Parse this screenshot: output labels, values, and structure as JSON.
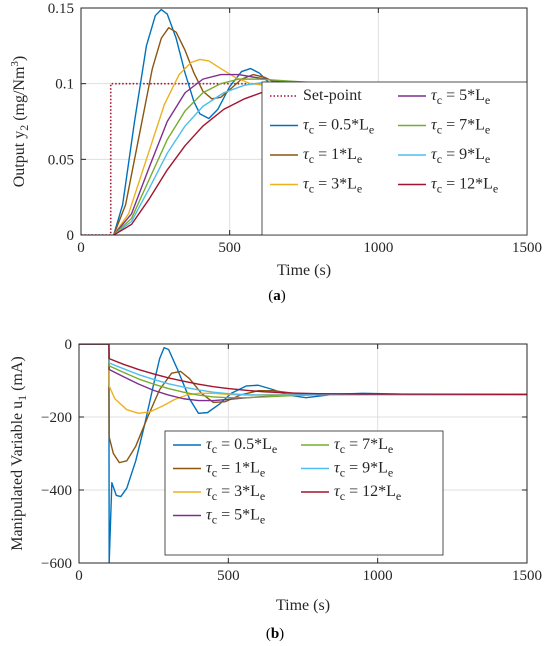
{
  "chart_data": [
    {
      "type": "line",
      "xlabel": "Time (s)",
      "ylabel_main": "Output y",
      "ylabel_sub": "2",
      "ylabel_unit_pre": " (mg/Nm",
      "ylabel_unit_sup": "3",
      "ylabel_unit_post": ")",
      "xlim": [
        0,
        1500
      ],
      "ylim": [
        0,
        0.15
      ],
      "xticks": [
        0,
        500,
        1000,
        1500
      ],
      "yticks": [
        0,
        0.05,
        0.1,
        0.15
      ],
      "ytick_labels": [
        "0",
        "0.05",
        "0.1",
        "0.15"
      ],
      "grid": true,
      "legend_position": "bottom-right",
      "subfig_label": "a",
      "series": [
        {
          "name": "Set-point",
          "label": "Set-point",
          "color": "#a2142f",
          "dash": "dotted",
          "x": [
            0,
            100,
            100,
            1500
          ],
          "y": [
            0,
            0,
            0.1,
            0.1
          ]
        },
        {
          "label": "0.5*L",
          "color": "#0072bd",
          "x": [
            110,
            140,
            180,
            220,
            250,
            270,
            290,
            320,
            350,
            380,
            400,
            430,
            460,
            500,
            540,
            570,
            600,
            640,
            680,
            720,
            780,
            850,
            950,
            1100,
            1500
          ],
          "y": [
            0,
            0.02,
            0.075,
            0.125,
            0.145,
            0.149,
            0.146,
            0.13,
            0.107,
            0.088,
            0.08,
            0.077,
            0.083,
            0.098,
            0.108,
            0.11,
            0.107,
            0.099,
            0.094,
            0.095,
            0.1,
            0.101,
            0.1,
            0.1,
            0.1
          ]
        },
        {
          "label": "1*L",
          "color": "#8c5510",
          "x": [
            110,
            150,
            200,
            240,
            270,
            295,
            320,
            350,
            380,
            410,
            440,
            470,
            500,
            540,
            580,
            620,
            660,
            700,
            760,
            850,
            1000,
            1500
          ],
          "y": [
            0,
            0.02,
            0.07,
            0.11,
            0.13,
            0.137,
            0.134,
            0.122,
            0.107,
            0.095,
            0.09,
            0.091,
            0.096,
            0.103,
            0.106,
            0.104,
            0.1,
            0.098,
            0.099,
            0.1,
            0.1,
            0.1
          ]
        },
        {
          "label": "3*L",
          "color": "#edb120",
          "x": [
            110,
            160,
            220,
            280,
            330,
            370,
            400,
            430,
            470,
            520,
            570,
            620,
            680,
            750,
            850,
            1000,
            1500
          ],
          "y": [
            0,
            0.014,
            0.05,
            0.086,
            0.106,
            0.114,
            0.116,
            0.115,
            0.11,
            0.104,
            0.1,
            0.099,
            0.1,
            0.101,
            0.1,
            0.1,
            0.1
          ]
        },
        {
          "label": "5*L",
          "color": "#7e2f8e",
          "x": [
            110,
            170,
            230,
            290,
            350,
            410,
            470,
            530,
            590,
            650,
            720,
            800,
            900,
            1050,
            1500
          ],
          "y": [
            0,
            0.014,
            0.045,
            0.075,
            0.094,
            0.103,
            0.106,
            0.106,
            0.104,
            0.102,
            0.101,
            0.1,
            0.1,
            0.1,
            0.1
          ]
        },
        {
          "label": "7*L",
          "color": "#77ac30",
          "x": [
            110,
            170,
            230,
            290,
            350,
            410,
            470,
            530,
            600,
            680,
            760,
            850,
            950,
            1100,
            1500
          ],
          "y": [
            0,
            0.011,
            0.037,
            0.063,
            0.082,
            0.094,
            0.1,
            0.103,
            0.103,
            0.102,
            0.101,
            0.1,
            0.1,
            0.1,
            0.1
          ]
        },
        {
          "label": "9*L",
          "color": "#4dbeee",
          "x": [
            110,
            170,
            230,
            290,
            350,
            410,
            480,
            550,
            620,
            700,
            800,
            900,
            1050,
            1500
          ],
          "y": [
            0,
            0.009,
            0.031,
            0.054,
            0.072,
            0.085,
            0.094,
            0.099,
            0.101,
            0.101,
            0.1,
            0.1,
            0.1,
            0.1
          ]
        },
        {
          "label": "12*L",
          "color": "#a2142f",
          "x": [
            110,
            170,
            230,
            290,
            350,
            410,
            480,
            550,
            620,
            700,
            800,
            900,
            1000,
            1150,
            1500
          ],
          "y": [
            0,
            0.007,
            0.024,
            0.043,
            0.059,
            0.072,
            0.083,
            0.09,
            0.095,
            0.098,
            0.099,
            0.1,
            0.1,
            0.1,
            0.1
          ]
        }
      ],
      "legend": [
        {
          "text": "Set-point",
          "ref": 0
        },
        {
          "greek": "τ",
          "sub": "c",
          "eq": " = 5*L",
          "sub2": "e",
          "ref": 4
        },
        {
          "greek": "τ",
          "sub": "c",
          "eq": " = 0.5*L",
          "sub2": "e",
          "ref": 1
        },
        {
          "greek": "τ",
          "sub": "c",
          "eq": " = 7*L",
          "sub2": "e",
          "ref": 5
        },
        {
          "greek": "τ",
          "sub": "c",
          "eq": " = 1*L",
          "sub2": "e",
          "ref": 2
        },
        {
          "greek": "τ",
          "sub": "c",
          "eq": " = 9*L",
          "sub2": "e",
          "ref": 6
        },
        {
          "greek": "τ",
          "sub": "c",
          "eq": " = 3*L",
          "sub2": "e",
          "ref": 3
        },
        {
          "greek": "τ",
          "sub": "c",
          "eq": " = 12*L",
          "sub2": "e",
          "ref": 7
        }
      ]
    },
    {
      "type": "line",
      "xlabel": "Time (s)",
      "ylabel_main": "Manipulated Variable u",
      "ylabel_sub": "1",
      "ylabel_unit_pre": " (mA)",
      "ylabel_unit_sup": "",
      "ylabel_unit_post": "",
      "xlim": [
        0,
        1500
      ],
      "ylim": [
        -600,
        0
      ],
      "xticks": [
        0,
        500,
        1000,
        1500
      ],
      "yticks": [
        -600,
        -400,
        -200,
        0
      ],
      "ytick_labels": [
        "−600",
        "−400",
        "−200",
        "0"
      ],
      "grid": true,
      "legend_position": "bottom-right",
      "subfig_label": "b",
      "series": [
        {
          "label": "0.5*L",
          "color": "#0072bd",
          "x": [
            0,
            100,
            101,
            110,
            125,
            140,
            160,
            190,
            220,
            250,
            270,
            285,
            300,
            330,
            370,
            400,
            430,
            470,
            510,
            560,
            600,
            650,
            700,
            760,
            850,
            950,
            1100,
            1500
          ],
          "y": [
            0,
            0,
            -600,
            -380,
            -415,
            -418,
            -395,
            -320,
            -220,
            -110,
            -40,
            -10,
            -15,
            -70,
            -150,
            -190,
            -188,
            -165,
            -135,
            -115,
            -113,
            -125,
            -140,
            -147,
            -138,
            -135,
            -138,
            -138
          ]
        },
        {
          "label": "1*L",
          "color": "#8c5510",
          "x": [
            0,
            100,
            101,
            115,
            135,
            160,
            190,
            230,
            270,
            310,
            340,
            370,
            410,
            450,
            490,
            540,
            600,
            650,
            720,
            800,
            900,
            1050,
            1500
          ],
          "y": [
            0,
            0,
            -255,
            -300,
            -325,
            -320,
            -280,
            -200,
            -125,
            -80,
            -75,
            -95,
            -135,
            -160,
            -158,
            -140,
            -128,
            -128,
            -135,
            -140,
            -138,
            -138,
            -138
          ]
        },
        {
          "label": "3*L",
          "color": "#edb120",
          "x": [
            0,
            100,
            101,
            120,
            160,
            200,
            240,
            280,
            320,
            360,
            400,
            450,
            500,
            560,
            620,
            700,
            800,
            900,
            1100,
            1500
          ],
          "y": [
            0,
            0,
            -115,
            -150,
            -180,
            -190,
            -185,
            -170,
            -152,
            -140,
            -135,
            -135,
            -138,
            -140,
            -139,
            -138,
            -138,
            -138,
            -138,
            -138
          ]
        },
        {
          "label": "5*L",
          "color": "#7e2f8e",
          "x": [
            0,
            100,
            101,
            150,
            200,
            250,
            300,
            350,
            400,
            450,
            500,
            550,
            600,
            700,
            800,
            950,
            1500
          ],
          "y": [
            0,
            0,
            -70,
            -90,
            -110,
            -127,
            -140,
            -150,
            -155,
            -155,
            -152,
            -148,
            -145,
            -140,
            -138,
            -138,
            -138
          ]
        },
        {
          "label": "7*L",
          "color": "#77ac30",
          "x": [
            0,
            100,
            101,
            150,
            200,
            250,
            300,
            350,
            400,
            450,
            500,
            560,
            620,
            700,
            800,
            950,
            1500
          ],
          "y": [
            0,
            0,
            -60,
            -78,
            -96,
            -110,
            -122,
            -132,
            -140,
            -145,
            -147,
            -147,
            -145,
            -142,
            -139,
            -138,
            -138
          ]
        },
        {
          "label": "9*L",
          "color": "#4dbeee",
          "x": [
            0,
            100,
            101,
            150,
            200,
            250,
            300,
            350,
            400,
            450,
            500,
            560,
            620,
            700,
            800,
            950,
            1500
          ],
          "y": [
            0,
            0,
            -52,
            -68,
            -84,
            -97,
            -109,
            -118,
            -126,
            -132,
            -136,
            -139,
            -140,
            -140,
            -139,
            -138,
            -138
          ]
        },
        {
          "label": "12*L",
          "color": "#a2142f",
          "x": [
            0,
            100,
            101,
            150,
            200,
            250,
            300,
            350,
            400,
            450,
            500,
            560,
            620,
            700,
            800,
            950,
            1500
          ],
          "y": [
            0,
            0,
            -40,
            -56,
            -70,
            -82,
            -93,
            -102,
            -110,
            -117,
            -122,
            -127,
            -131,
            -134,
            -136,
            -137,
            -138
          ]
        }
      ],
      "legend": [
        {
          "greek": "τ",
          "sub": "c",
          "eq": " = 0.5*L",
          "sub2": "e",
          "ref": 0
        },
        {
          "greek": "τ",
          "sub": "c",
          "eq": " = 7*L",
          "sub2": "e",
          "ref": 4
        },
        {
          "greek": "τ",
          "sub": "c",
          "eq": " = 1*L",
          "sub2": "e",
          "ref": 1
        },
        {
          "greek": "τ",
          "sub": "c",
          "eq": " = 9*L",
          "sub2": "e",
          "ref": 5
        },
        {
          "greek": "τ",
          "sub": "c",
          "eq": " = 3*L",
          "sub2": "e",
          "ref": 2
        },
        {
          "greek": "τ",
          "sub": "c",
          "eq": " = 12*L",
          "sub2": "e",
          "ref": 6
        },
        {
          "greek": "τ",
          "sub": "c",
          "eq": " = 5*L",
          "sub2": "e",
          "ref": 3
        }
      ]
    }
  ]
}
